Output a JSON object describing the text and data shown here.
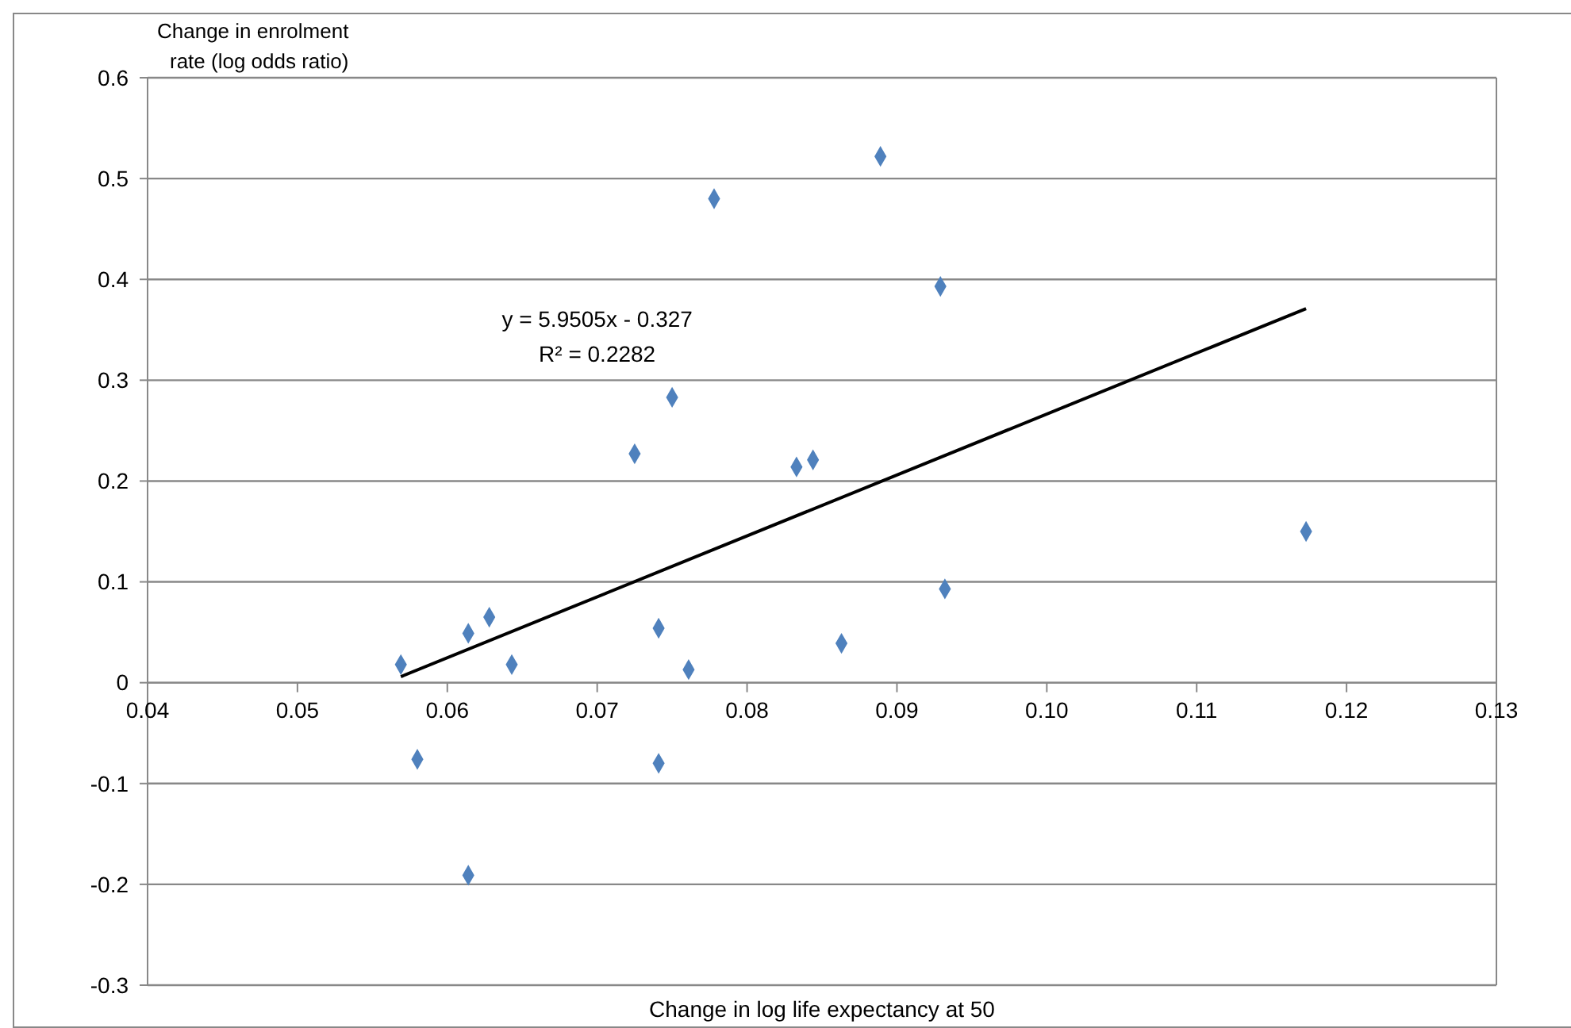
{
  "chart_data": {
    "type": "scatter",
    "xlabel": "Change in log life expectancy at 50",
    "ylabel": "Change in enrolment rate (log odds ratio)",
    "xlim": [
      0.04,
      0.13
    ],
    "xticks": [
      0.04,
      0.05,
      0.06,
      0.07,
      0.08,
      0.09,
      {
        "value": 0.1,
        "label": "0.10"
      },
      0.11,
      0.12,
      0.13
    ],
    "ylim": [
      -0.3,
      0.6
    ],
    "yticks": [
      -0.3,
      -0.2,
      -0.1,
      0,
      0.1,
      0.2,
      0.3,
      0.4,
      0.5,
      0.6
    ],
    "grid": "y",
    "annotations": [
      "y = 5.9505x - 0.327",
      "R² = 0.2282"
    ],
    "series": [
      {
        "color": "#4f81bd",
        "marker": "diamond",
        "x": [
          0.0569,
          0.0614,
          0.0628,
          0.0643,
          0.0741,
          0.0761,
          0.058,
          0.0741,
          0.0614,
          0.0889,
          0.0778,
          0.0929,
          0.075,
          0.0725,
          0.0833,
          0.0844,
          0.0932,
          0.0863,
          0.1173
        ],
        "values": [
          0.018,
          0.049,
          0.065,
          0.018,
          0.054,
          0.013,
          -0.076,
          -0.08,
          -0.191,
          0.522,
          0.48,
          0.393,
          0.283,
          0.227,
          0.214,
          0.221,
          0.093,
          0.039,
          0.15
        ]
      },
      {
        "type": "line",
        "color": "#000000",
        "marker": "none",
        "x": [
          0.0569,
          0.1173
        ],
        "values": [
          0.006,
          0.371
        ]
      }
    ]
  }
}
